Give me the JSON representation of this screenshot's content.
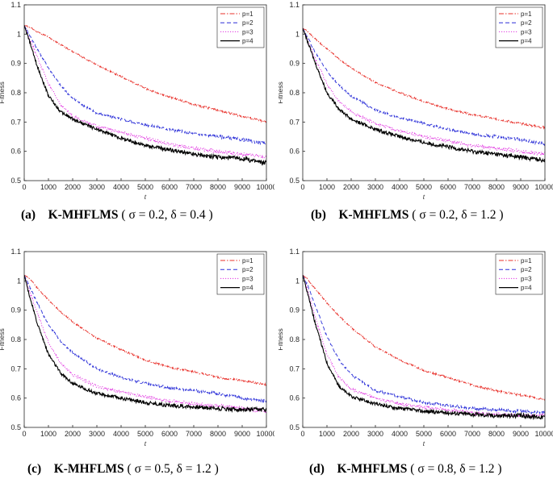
{
  "chart_data": [
    {
      "type": "line",
      "panel_label": "(a)",
      "caption_method": "K-MHFLMS",
      "caption_params": "( σ = 0.2, δ = 0.4 )",
      "caption_sym1": "σ",
      "caption_val1": "0.2",
      "caption_sym2": "δ",
      "caption_val2": "0.4",
      "xlabel": "t",
      "ylabel": "Fitness",
      "xlim": [
        0,
        10000
      ],
      "ylim": [
        0.5,
        1.1
      ],
      "xticks": [
        "0",
        "1000",
        "2000",
        "3000",
        "4000",
        "5000",
        "6000",
        "7000",
        "8000",
        "9000",
        "10000"
      ],
      "yticks": [
        "0.5",
        "0.6",
        "0.7",
        "0.8",
        "0.9",
        "1",
        "1.1"
      ],
      "legend": "top-right",
      "series": [
        {
          "name": "p=1",
          "color": "#e8302a",
          "dash": "dashdot",
          "x": [
            0,
            200,
            500,
            1000,
            1500,
            2000,
            3000,
            4000,
            5000,
            6000,
            7000,
            8000,
            9000,
            10000
          ],
          "y": [
            1.03,
            1.025,
            1.01,
            0.99,
            0.965,
            0.94,
            0.895,
            0.855,
            0.815,
            0.785,
            0.76,
            0.74,
            0.72,
            0.7
          ]
        },
        {
          "name": "p=2",
          "color": "#2b2fd8",
          "dash": "dashed",
          "x": [
            0,
            200,
            500,
            1000,
            1500,
            2000,
            3000,
            4000,
            5000,
            6000,
            7000,
            8000,
            9000,
            10000
          ],
          "y": [
            1.03,
            1.0,
            0.955,
            0.885,
            0.825,
            0.78,
            0.73,
            0.71,
            0.69,
            0.675,
            0.66,
            0.65,
            0.64,
            0.625
          ]
        },
        {
          "name": "p=3",
          "color": "#e030e0",
          "dash": "dotted",
          "x": [
            0,
            200,
            500,
            1000,
            1500,
            2000,
            3000,
            4000,
            5000,
            6000,
            7000,
            8000,
            9000,
            10000
          ],
          "y": [
            1.03,
            0.99,
            0.93,
            0.83,
            0.76,
            0.72,
            0.685,
            0.665,
            0.645,
            0.625,
            0.61,
            0.6,
            0.59,
            0.58
          ]
        },
        {
          "name": "p=4",
          "color": "#000000",
          "dash": "solid",
          "x": [
            0,
            200,
            500,
            1000,
            1500,
            2000,
            3000,
            4000,
            5000,
            6000,
            7000,
            8000,
            9000,
            10000
          ],
          "y": [
            1.03,
            0.98,
            0.9,
            0.79,
            0.735,
            0.71,
            0.675,
            0.645,
            0.62,
            0.605,
            0.59,
            0.58,
            0.575,
            0.56
          ]
        }
      ]
    },
    {
      "type": "line",
      "panel_label": "(b)",
      "caption_method": "K-MHFLMS",
      "caption_params": "( σ = 0.2, δ = 1.2 )",
      "caption_sym1": "σ",
      "caption_val1": "0.2",
      "caption_sym2": "δ",
      "caption_val2": "1.2",
      "xlabel": "t",
      "ylabel": "Fitness",
      "xlim": [
        0,
        10000
      ],
      "ylim": [
        0.5,
        1.1
      ],
      "xticks": [
        "0",
        "1000",
        "2000",
        "3000",
        "4000",
        "5000",
        "6000",
        "7000",
        "8000",
        "9000",
        "10000"
      ],
      "yticks": [
        "0.5",
        "0.6",
        "0.7",
        "0.8",
        "0.9",
        "1",
        "1.1"
      ],
      "legend": "top-right",
      "series": [
        {
          "name": "p=1",
          "color": "#e8302a",
          "dash": "dashdot",
          "x": [
            0,
            200,
            500,
            1000,
            1500,
            2000,
            3000,
            4000,
            5000,
            6000,
            7000,
            8000,
            9000,
            10000
          ],
          "y": [
            1.02,
            1.01,
            0.985,
            0.95,
            0.915,
            0.885,
            0.835,
            0.8,
            0.77,
            0.745,
            0.725,
            0.71,
            0.695,
            0.68
          ]
        },
        {
          "name": "p=2",
          "color": "#2b2fd8",
          "dash": "dashed",
          "x": [
            0,
            200,
            500,
            1000,
            1500,
            2000,
            3000,
            4000,
            5000,
            6000,
            7000,
            8000,
            9000,
            10000
          ],
          "y": [
            1.02,
            0.99,
            0.94,
            0.875,
            0.825,
            0.79,
            0.74,
            0.715,
            0.695,
            0.675,
            0.66,
            0.65,
            0.64,
            0.625
          ]
        },
        {
          "name": "p=3",
          "color": "#e030e0",
          "dash": "dotted",
          "x": [
            0,
            200,
            500,
            1000,
            1500,
            2000,
            3000,
            4000,
            5000,
            6000,
            7000,
            8000,
            9000,
            10000
          ],
          "y": [
            1.02,
            0.98,
            0.92,
            0.83,
            0.77,
            0.735,
            0.695,
            0.67,
            0.65,
            0.635,
            0.62,
            0.61,
            0.6,
            0.59
          ]
        },
        {
          "name": "p=4",
          "color": "#000000",
          "dash": "solid",
          "x": [
            0,
            200,
            500,
            1000,
            1500,
            2000,
            3000,
            4000,
            5000,
            6000,
            7000,
            8000,
            9000,
            10000
          ],
          "y": [
            1.02,
            0.975,
            0.905,
            0.8,
            0.745,
            0.71,
            0.675,
            0.65,
            0.63,
            0.615,
            0.6,
            0.59,
            0.58,
            0.57
          ]
        }
      ]
    },
    {
      "type": "line",
      "panel_label": "(c)",
      "caption_method": "K-MHFLMS",
      "caption_params": "( σ = 0.5, δ = 1.2 )",
      "caption_sym1": "σ",
      "caption_val1": "0.5",
      "caption_sym2": "δ",
      "caption_val2": "1.2",
      "xlabel": "t",
      "ylabel": "Fitness",
      "xlim": [
        0,
        10000
      ],
      "ylim": [
        0.5,
        1.1
      ],
      "xticks": [
        "0",
        "1000",
        "2000",
        "3000",
        "4000",
        "5000",
        "6000",
        "7000",
        "8000",
        "9000",
        "10000"
      ],
      "yticks": [
        "0.5",
        "0.6",
        "0.7",
        "0.8",
        "0.9",
        "1",
        "1.1"
      ],
      "legend": "top-right",
      "series": [
        {
          "name": "p=1",
          "color": "#e8302a",
          "dash": "dashdot",
          "x": [
            0,
            200,
            500,
            1000,
            1500,
            2000,
            3000,
            4000,
            5000,
            6000,
            7000,
            8000,
            9000,
            10000
          ],
          "y": [
            1.02,
            1.01,
            0.98,
            0.935,
            0.895,
            0.86,
            0.805,
            0.765,
            0.73,
            0.705,
            0.69,
            0.67,
            0.66,
            0.645
          ]
        },
        {
          "name": "p=2",
          "color": "#2b2fd8",
          "dash": "dashed",
          "x": [
            0,
            200,
            500,
            1000,
            1500,
            2000,
            3000,
            4000,
            5000,
            6000,
            7000,
            8000,
            9000,
            10000
          ],
          "y": [
            1.02,
            0.985,
            0.93,
            0.85,
            0.795,
            0.755,
            0.7,
            0.67,
            0.65,
            0.635,
            0.625,
            0.615,
            0.6,
            0.59
          ]
        },
        {
          "name": "p=3",
          "color": "#e030e0",
          "dash": "dotted",
          "x": [
            0,
            200,
            500,
            1000,
            1500,
            2000,
            3000,
            4000,
            5000,
            6000,
            7000,
            8000,
            9000,
            10000
          ],
          "y": [
            1.02,
            0.97,
            0.9,
            0.79,
            0.72,
            0.68,
            0.64,
            0.62,
            0.605,
            0.59,
            0.58,
            0.575,
            0.565,
            0.555
          ]
        },
        {
          "name": "p=4",
          "color": "#000000",
          "dash": "solid",
          "x": [
            0,
            200,
            500,
            1000,
            1500,
            2000,
            3000,
            4000,
            5000,
            6000,
            7000,
            8000,
            9000,
            10000
          ],
          "y": [
            1.02,
            0.955,
            0.865,
            0.75,
            0.685,
            0.65,
            0.615,
            0.6,
            0.585,
            0.575,
            0.57,
            0.565,
            0.56,
            0.56
          ]
        }
      ]
    },
    {
      "type": "line",
      "panel_label": "(d)",
      "caption_method": "K-MHFLMS",
      "caption_params": "( σ = 0.8, δ = 1.2 )",
      "caption_sym1": "σ",
      "caption_val1": "0.8",
      "caption_sym2": "δ",
      "caption_val2": "1.2",
      "xlabel": "t",
      "ylabel": "Fitness",
      "xlim": [
        0,
        10000
      ],
      "ylim": [
        0.5,
        1.1
      ],
      "xticks": [
        "0",
        "1000",
        "2000",
        "3000",
        "4000",
        "5000",
        "6000",
        "7000",
        "8000",
        "9000",
        "10000"
      ],
      "yticks": [
        "0.5",
        "0.6",
        "0.7",
        "0.8",
        "0.9",
        "1",
        "1.1"
      ],
      "legend": "top-right",
      "series": [
        {
          "name": "p=1",
          "color": "#e8302a",
          "dash": "dashdot",
          "x": [
            0,
            200,
            500,
            1000,
            1500,
            2000,
            3000,
            4000,
            5000,
            6000,
            7000,
            8000,
            9000,
            10000
          ],
          "y": [
            1.02,
            1.005,
            0.975,
            0.925,
            0.88,
            0.84,
            0.775,
            0.73,
            0.695,
            0.67,
            0.645,
            0.625,
            0.61,
            0.595
          ]
        },
        {
          "name": "p=2",
          "color": "#2b2fd8",
          "dash": "dashed",
          "x": [
            0,
            200,
            500,
            1000,
            1500,
            2000,
            3000,
            4000,
            5000,
            6000,
            7000,
            8000,
            9000,
            10000
          ],
          "y": [
            1.02,
            0.985,
            0.92,
            0.81,
            0.73,
            0.68,
            0.625,
            0.605,
            0.585,
            0.575,
            0.565,
            0.56,
            0.555,
            0.55
          ]
        },
        {
          "name": "p=3",
          "color": "#e030e0",
          "dash": "dotted",
          "x": [
            0,
            200,
            500,
            1000,
            1500,
            2000,
            3000,
            4000,
            5000,
            6000,
            7000,
            8000,
            9000,
            10000
          ],
          "y": [
            1.02,
            0.97,
            0.88,
            0.75,
            0.67,
            0.63,
            0.6,
            0.58,
            0.57,
            0.56,
            0.55,
            0.545,
            0.54,
            0.54
          ]
        },
        {
          "name": "p=4",
          "color": "#000000",
          "dash": "solid",
          "x": [
            0,
            200,
            500,
            1000,
            1500,
            2000,
            3000,
            4000,
            5000,
            6000,
            7000,
            8000,
            9000,
            10000
          ],
          "y": [
            1.02,
            0.96,
            0.86,
            0.72,
            0.64,
            0.605,
            0.58,
            0.565,
            0.555,
            0.55,
            0.545,
            0.54,
            0.54,
            0.535
          ]
        }
      ]
    }
  ]
}
